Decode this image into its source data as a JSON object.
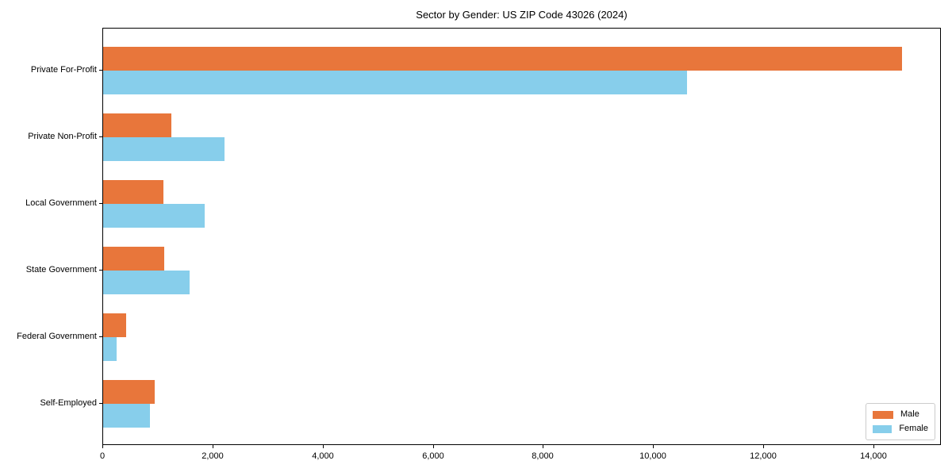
{
  "chart_data": {
    "type": "bar",
    "orientation": "horizontal",
    "title": "Sector by Gender: US ZIP Code 43026 (2024)",
    "categories": [
      "Private For-Profit",
      "Private Non-Profit",
      "Local Government",
      "State Government",
      "Federal Government",
      "Self-Employed"
    ],
    "series": [
      {
        "name": "Male",
        "color": "#e8763b",
        "values": [
          14500,
          1240,
          1090,
          1110,
          420,
          940
        ]
      },
      {
        "name": "Female",
        "color": "#87ceeb",
        "values": [
          10600,
          2200,
          1840,
          1570,
          240,
          850
        ]
      }
    ],
    "xlabel": "",
    "ylabel": "",
    "xlim": [
      0,
      15225
    ],
    "xticks": [
      0,
      2000,
      4000,
      6000,
      8000,
      10000,
      12000,
      14000
    ],
    "xtick_labels": [
      "0",
      "2,000",
      "4,000",
      "6,000",
      "8,000",
      "10,000",
      "12,000",
      "14,000"
    ],
    "grid": false,
    "legend": {
      "position": "lower right",
      "entries": [
        "Male",
        "Female"
      ]
    }
  },
  "colors": {
    "male": "#e8763b",
    "female": "#87ceeb",
    "axis": "#000000",
    "legend_border": "#cccccc",
    "background": "#ffffff"
  }
}
